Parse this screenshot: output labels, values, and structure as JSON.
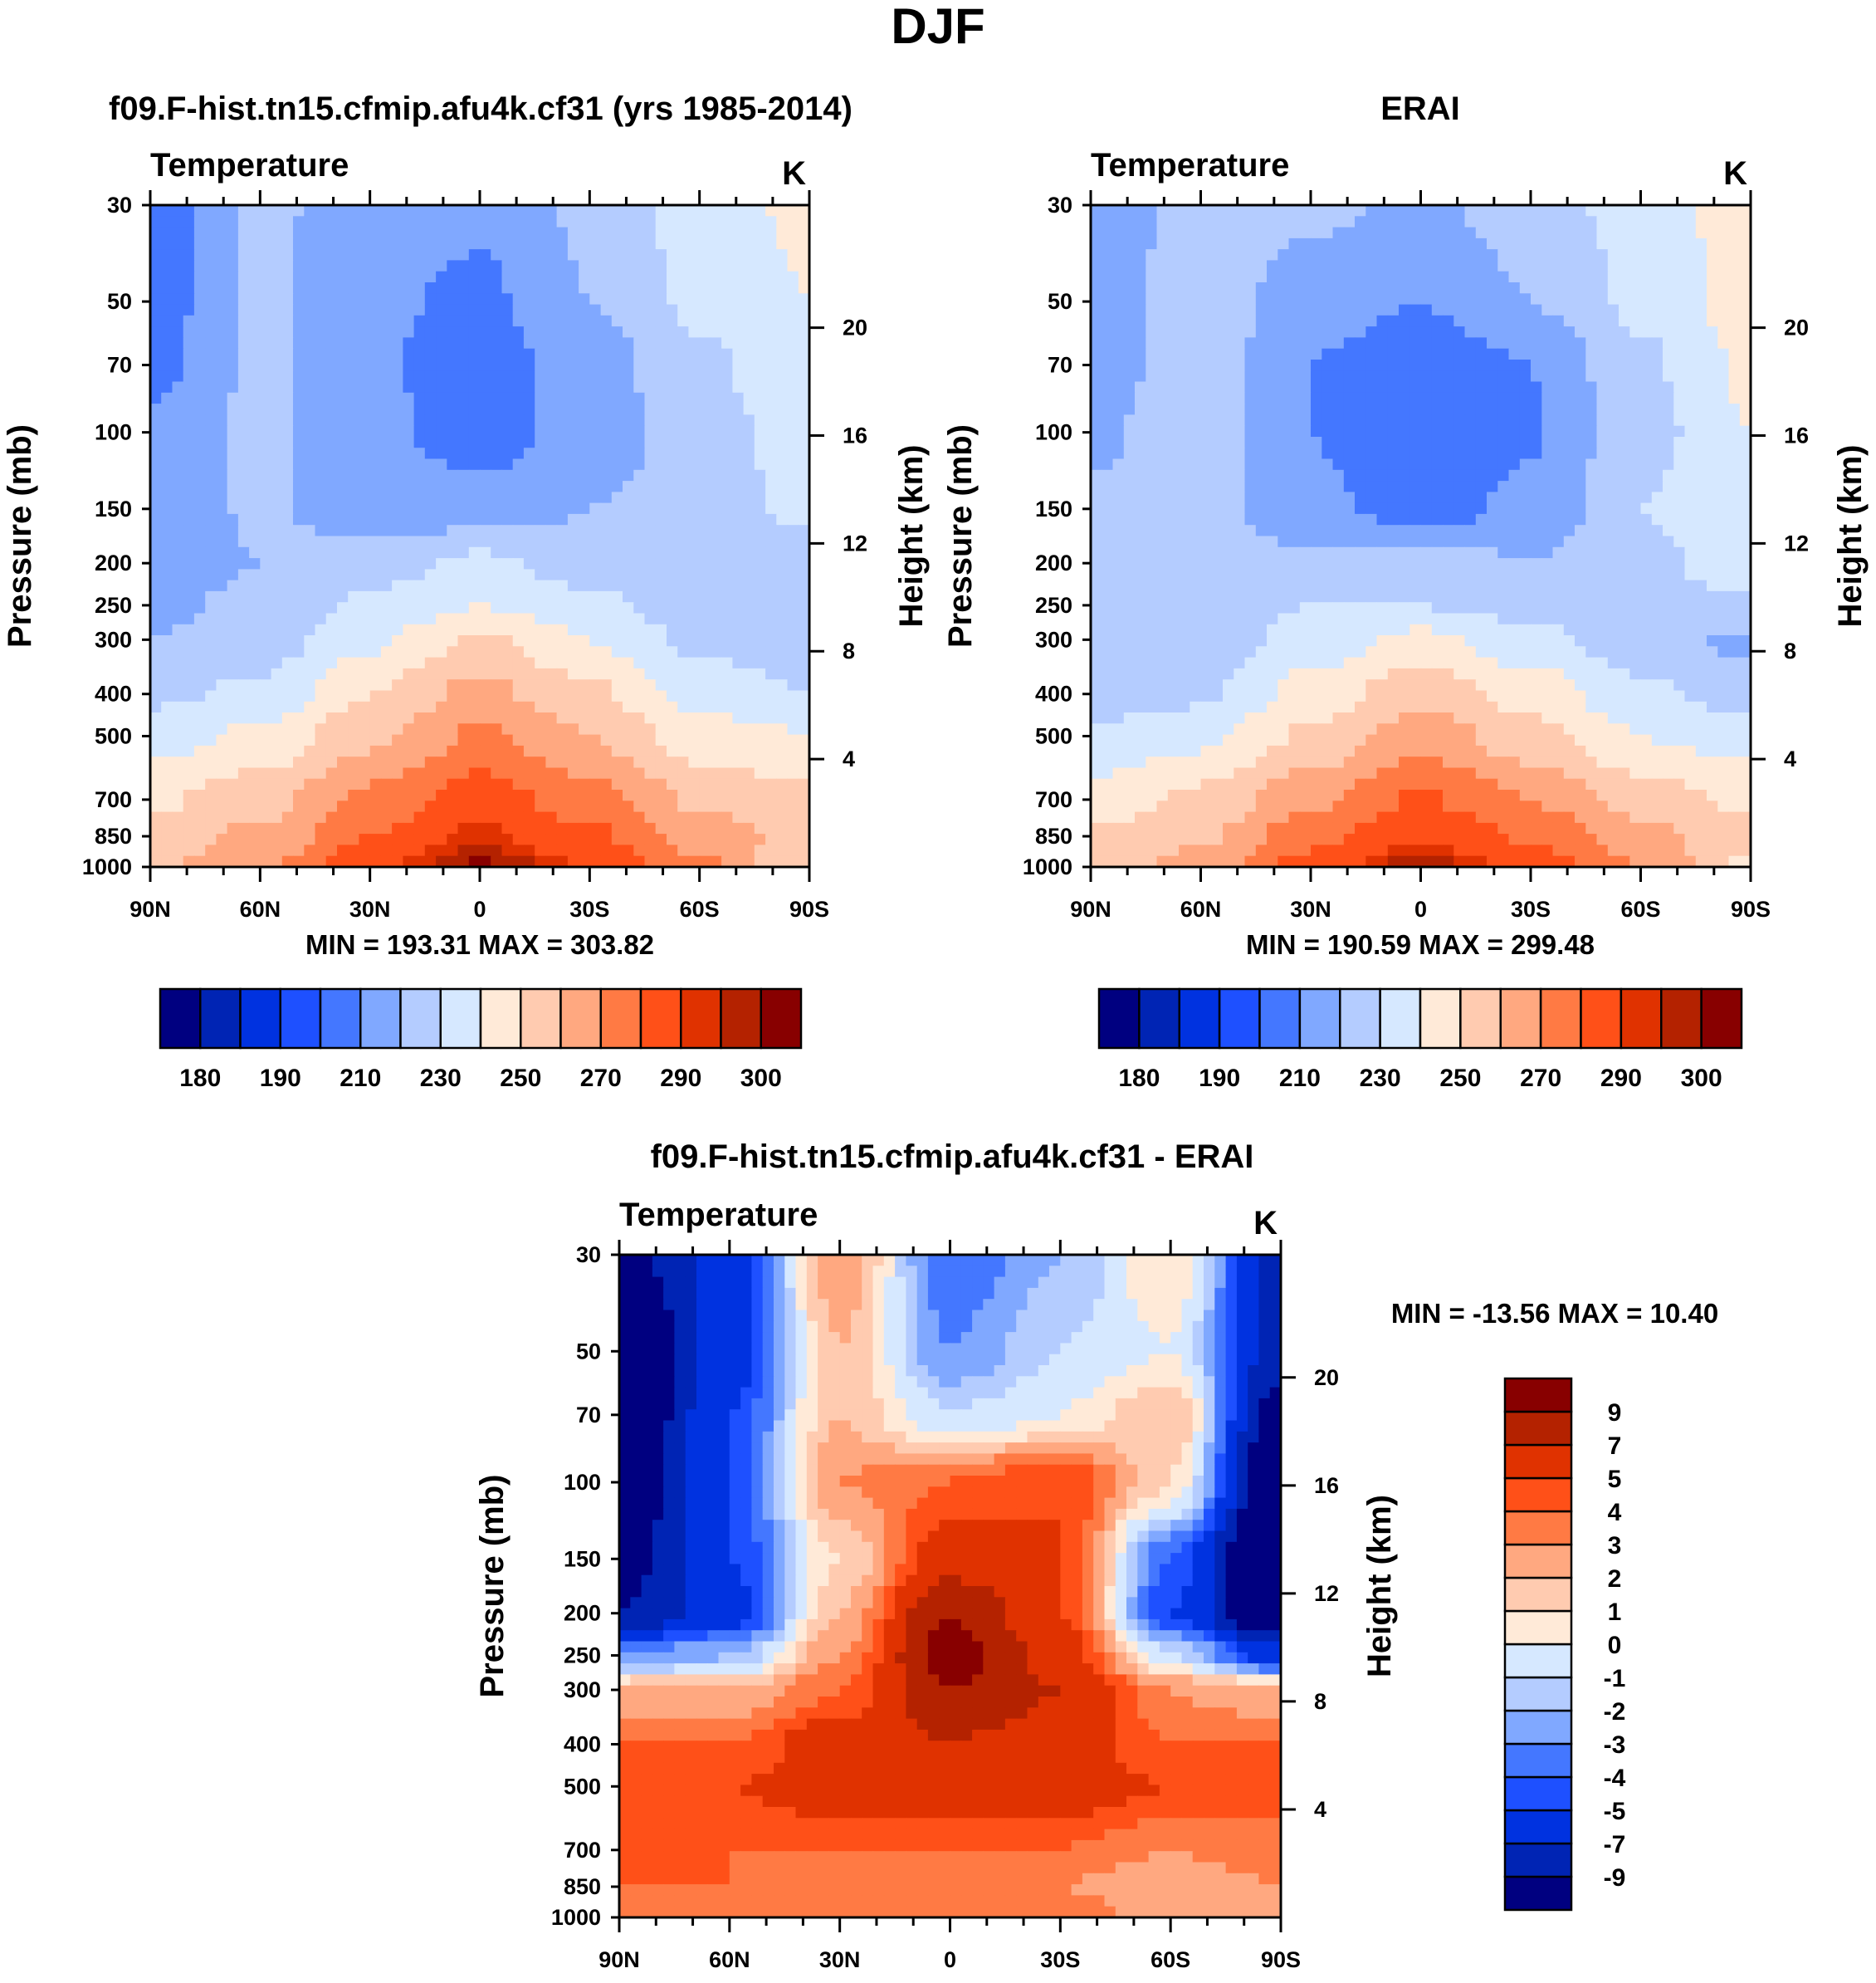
{
  "page_title": "DJF",
  "chart_data": [
    {
      "type": "heatmap",
      "title": "f09.F-hist.tn15.cfmip.afu4k.cf31 (yrs 1985-2014)",
      "left_label": "Temperature",
      "units": "K",
      "xlabel": "",
      "ylabel": "Pressure (mb)",
      "ylabel_right": "Height (km)",
      "stats": "MIN = 193.31  MAX = 303.82",
      "x_ticks": [
        "90N",
        "60N",
        "30N",
        "0",
        "30S",
        "60S",
        "90S"
      ],
      "y_ticks": [
        30,
        50,
        70,
        100,
        150,
        200,
        250,
        300,
        400,
        500,
        700,
        850,
        1000
      ],
      "height_ticks": [
        4,
        8,
        12,
        16,
        20
      ],
      "ylim": [
        1000,
        30
      ],
      "levels": [
        180,
        185,
        190,
        200,
        210,
        220,
        230,
        240,
        250,
        260,
        270,
        280,
        290,
        295,
        300
      ],
      "level_labels": [
        "180",
        "",
        "190",
        "",
        "210",
        "",
        "230",
        "",
        "250",
        "",
        "270",
        "",
        "290",
        "",
        "300"
      ],
      "colorbar": "horizontal",
      "lats": [
        90,
        60,
        30,
        0,
        -30,
        -60,
        -90
      ],
      "pressures": [
        30,
        50,
        70,
        100,
        150,
        200,
        250,
        300,
        400,
        500,
        700,
        850,
        1000
      ],
      "values": [
        [
          205,
          222,
          215,
          212,
          222,
          235,
          242
        ],
        [
          205,
          222,
          212,
          208,
          220,
          232,
          240
        ],
        [
          207,
          222,
          211,
          205,
          215,
          228,
          238
        ],
        [
          212,
          222,
          213,
          205,
          214,
          225,
          235
        ],
        [
          215,
          221,
          216,
          214,
          220,
          225,
          232
        ],
        [
          215,
          220,
          225,
          232,
          225,
          222,
          225
        ],
        [
          218,
          222,
          232,
          240,
          232,
          225,
          222
        ],
        [
          220,
          225,
          238,
          252,
          240,
          228,
          222
        ],
        [
          228,
          232,
          250,
          263,
          252,
          236,
          230
        ],
        [
          236,
          242,
          258,
          272,
          260,
          245,
          240
        ],
        [
          248,
          256,
          272,
          285,
          274,
          258,
          252
        ],
        [
          255,
          262,
          280,
          292,
          282,
          266,
          256
        ],
        [
          258,
          268,
          288,
          301,
          290,
          272,
          250
        ]
      ]
    },
    {
      "type": "heatmap",
      "title": "ERAI",
      "left_label": "Temperature",
      "units": "K",
      "xlabel": "",
      "ylabel": "Pressure (mb)",
      "ylabel_right": "Height (km)",
      "stats": "MIN = 190.59  MAX = 299.48",
      "x_ticks": [
        "90N",
        "60N",
        "30N",
        "0",
        "30S",
        "60S",
        "90S"
      ],
      "y_ticks": [
        30,
        50,
        70,
        100,
        150,
        200,
        250,
        300,
        400,
        500,
        700,
        850,
        1000
      ],
      "height_ticks": [
        4,
        8,
        12,
        16,
        20
      ],
      "ylim": [
        1000,
        30
      ],
      "levels": [
        180,
        185,
        190,
        200,
        210,
        220,
        230,
        240,
        250,
        260,
        270,
        280,
        290,
        295,
        300
      ],
      "level_labels": [
        "180",
        "",
        "190",
        "",
        "210",
        "",
        "230",
        "",
        "250",
        "",
        "270",
        "",
        "290",
        "",
        "300"
      ],
      "colorbar": "horizontal",
      "lats": [
        90,
        60,
        30,
        0,
        -30,
        -60,
        -90
      ],
      "pressures": [
        30,
        50,
        70,
        100,
        150,
        200,
        250,
        300,
        400,
        500,
        700,
        850,
        1000
      ],
      "values": [
        [
          212,
          225,
          222,
          218,
          225,
          234,
          245
        ],
        [
          214,
          226,
          215,
          210,
          220,
          232,
          244
        ],
        [
          215,
          226,
          210,
          203,
          210,
          228,
          242
        ],
        [
          218,
          226,
          210,
          201,
          209,
          226,
          240
        ],
        [
          222,
          224,
          212,
          206,
          212,
          230,
          240
        ],
        [
          224,
          226,
          222,
          224,
          220,
          227,
          236
        ],
        [
          222,
          224,
          230,
          230,
          226,
          226,
          228
        ],
        [
          220,
          223,
          234,
          243,
          233,
          224,
          218
        ],
        [
          224,
          228,
          244,
          256,
          246,
          232,
          226
        ],
        [
          232,
          238,
          252,
          266,
          254,
          240,
          236
        ],
        [
          244,
          252,
          268,
          281,
          270,
          255,
          248
        ],
        [
          252,
          258,
          277,
          289,
          279,
          264,
          253
        ],
        [
          255,
          264,
          284,
          298,
          286,
          270,
          248
        ]
      ]
    },
    {
      "type": "heatmap",
      "title": "f09.F-hist.tn15.cfmip.afu4k.cf31 - ERAI",
      "left_label": "Temperature",
      "units": "K",
      "xlabel": "",
      "ylabel": "Pressure (mb)",
      "ylabel_right": "Height (km)",
      "stats": "MIN = -13.56  MAX =  10.40",
      "x_ticks": [
        "90N",
        "60N",
        "30N",
        "0",
        "30S",
        "60S",
        "90S"
      ],
      "y_ticks": [
        30,
        50,
        70,
        100,
        150,
        200,
        250,
        300,
        400,
        500,
        700,
        850,
        1000
      ],
      "height_ticks": [
        4,
        8,
        12,
        16,
        20
      ],
      "ylim": [
        1000,
        30
      ],
      "levels": [
        -9,
        -7,
        -5,
        -4,
        -3,
        -2,
        -1,
        0,
        1,
        2,
        3,
        4,
        5,
        7,
        9
      ],
      "level_labels": [
        "-9",
        "-7",
        "-5",
        "-4",
        "-3",
        "-2",
        "-1",
        "0",
        "1",
        "2",
        "3",
        "4",
        "5",
        "7",
        "9"
      ],
      "colorbar": "vertical",
      "lats": [
        90,
        60,
        30,
        0,
        -30,
        -60,
        -90
      ],
      "pressures": [
        30,
        50,
        70,
        100,
        150,
        200,
        250,
        300,
        400,
        500,
        700,
        850,
        1000
      ],
      "values": [
        [
          -10,
          -6,
          3,
          -4,
          -2,
          1,
          -8
        ],
        [
          -12,
          -6,
          2,
          -3,
          -1,
          0,
          -8
        ],
        [
          -12,
          -5,
          2,
          -1,
          0,
          2,
          -10
        ],
        [
          -11,
          -5,
          3,
          4,
          5,
          1,
          -12
        ],
        [
          -10,
          -5,
          1,
          6,
          5,
          -4,
          -13
        ],
        [
          -9,
          -6,
          2,
          9,
          5,
          -5,
          -12
        ],
        [
          -3,
          -2,
          3,
          10,
          6,
          -1,
          -6
        ],
        [
          2,
          2,
          4,
          9,
          7,
          3,
          2
        ],
        [
          4,
          4,
          6,
          7,
          6,
          4,
          4
        ],
        [
          4,
          5,
          6,
          6,
          6,
          5,
          4
        ],
        [
          5,
          4,
          4,
          4,
          4,
          3,
          4
        ],
        [
          4,
          4,
          3,
          3,
          3,
          2,
          3
        ],
        [
          4,
          3,
          4,
          3,
          4,
          2,
          3
        ]
      ]
    }
  ],
  "colors": [
    "#000080",
    "#0024b4",
    "#0032e0",
    "#1e50ff",
    "#4477ff",
    "#80a8ff",
    "#b4ccff",
    "#d6e8ff",
    "#ffead8",
    "#ffcbb0",
    "#ffa880",
    "#ff7a44",
    "#ff5018",
    "#e03200",
    "#b42200",
    "#880000"
  ]
}
